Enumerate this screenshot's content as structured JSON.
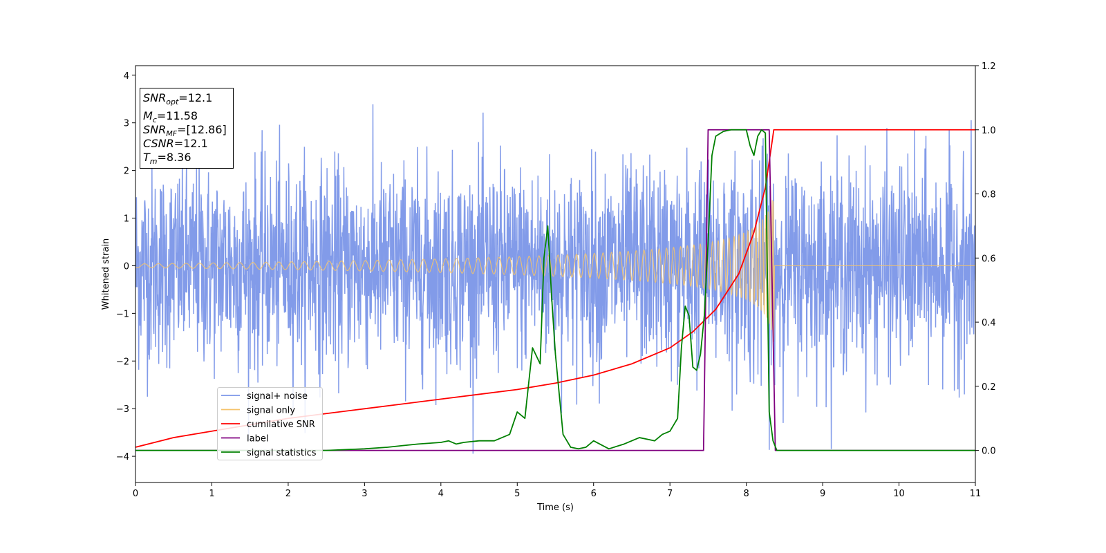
{
  "chart_data": {
    "type": "line",
    "xlabel": "Time (s)",
    "ylabel": "Whitened strain",
    "xlim": [
      0,
      11
    ],
    "ylim_left": [
      -4.55,
      4.2
    ],
    "ylim_right": [
      -0.1,
      1.2
    ],
    "xticks": [
      0,
      1,
      2,
      3,
      4,
      5,
      6,
      7,
      8,
      9,
      10,
      11
    ],
    "yticks_left": [
      -4,
      -3,
      -2,
      -1,
      0,
      1,
      2,
      3,
      4
    ],
    "yticks_right": [
      0.0,
      0.2,
      0.4,
      0.6,
      0.8,
      1.0,
      1.2
    ],
    "legend_location": "lower-left",
    "annotation": {
      "lines": [
        {
          "base": "SNR",
          "sub": "opt",
          "value": "=12.1"
        },
        {
          "base": "M",
          "sub": "c",
          "value": "=11.58"
        },
        {
          "base": "SNR",
          "sub": "MF",
          "value": "=[12.86]"
        },
        {
          "base": "CSNR",
          "sub": "",
          "value": "=12.1"
        },
        {
          "base": "T",
          "sub": "m",
          "value": "=8.36"
        }
      ]
    },
    "series": [
      {
        "name": "signal+ noise",
        "color": "#7b96e8",
        "axis": "left",
        "kind": "noise",
        "sigma": 1.0,
        "x_range": [
          0,
          11
        ],
        "chirp_end": 8.36
      },
      {
        "name": "signal only",
        "color": "#f5c36b",
        "axis": "left",
        "kind": "chirp",
        "x_range": [
          0,
          8.36
        ],
        "amplitude_start": 0.04,
        "amplitude_end": 1.6
      },
      {
        "name": "cumilative SNR",
        "color": "#ff0000",
        "axis": "right",
        "x": [
          0,
          0.5,
          1,
          1.5,
          2,
          2.5,
          3,
          3.5,
          4,
          4.5,
          5,
          5.5,
          6,
          6.5,
          7,
          7.3,
          7.6,
          7.9,
          8.1,
          8.25,
          8.33,
          8.36,
          8.37,
          11
        ],
        "y": [
          0.01,
          0.04,
          0.06,
          0.08,
          0.1,
          0.115,
          0.13,
          0.145,
          0.16,
          0.175,
          0.19,
          0.21,
          0.235,
          0.27,
          0.32,
          0.37,
          0.44,
          0.55,
          0.68,
          0.82,
          0.95,
          1.0,
          1.0,
          1.0
        ]
      },
      {
        "name": "label",
        "color": "#800080",
        "axis": "right",
        "x": [
          0,
          7.44,
          7.5,
          8.3,
          8.38,
          11
        ],
        "y": [
          0.0,
          0.0,
          1.0,
          1.0,
          0.0,
          0.0
        ]
      },
      {
        "name": "signal statistics",
        "color": "#008000",
        "axis": "right",
        "x": [
          0,
          2.5,
          3,
          3.3,
          3.5,
          3.7,
          4,
          4.1,
          4.2,
          4.3,
          4.5,
          4.7,
          4.8,
          4.9,
          5.0,
          5.1,
          5.2,
          5.3,
          5.35,
          5.4,
          5.45,
          5.5,
          5.6,
          5.7,
          5.8,
          5.9,
          6.0,
          6.2,
          6.4,
          6.6,
          6.8,
          6.9,
          7.0,
          7.1,
          7.15,
          7.2,
          7.25,
          7.3,
          7.35,
          7.4,
          7.45,
          7.5,
          7.55,
          7.6,
          7.7,
          7.8,
          8.0,
          8.05,
          8.1,
          8.15,
          8.2,
          8.25,
          8.3,
          8.35,
          8.4,
          8.5,
          11
        ],
        "y": [
          0.0,
          0.0,
          0.005,
          0.01,
          0.015,
          0.02,
          0.025,
          0.03,
          0.02,
          0.025,
          0.03,
          0.03,
          0.04,
          0.05,
          0.12,
          0.1,
          0.32,
          0.27,
          0.6,
          0.7,
          0.48,
          0.3,
          0.05,
          0.01,
          0.005,
          0.01,
          0.03,
          0.005,
          0.02,
          0.04,
          0.03,
          0.05,
          0.06,
          0.1,
          0.32,
          0.45,
          0.42,
          0.26,
          0.25,
          0.3,
          0.42,
          0.65,
          0.92,
          0.98,
          0.995,
          1.0,
          1.0,
          0.95,
          0.92,
          0.98,
          1.0,
          0.99,
          0.12,
          0.03,
          0.0,
          0.0,
          0.0
        ]
      }
    ]
  }
}
